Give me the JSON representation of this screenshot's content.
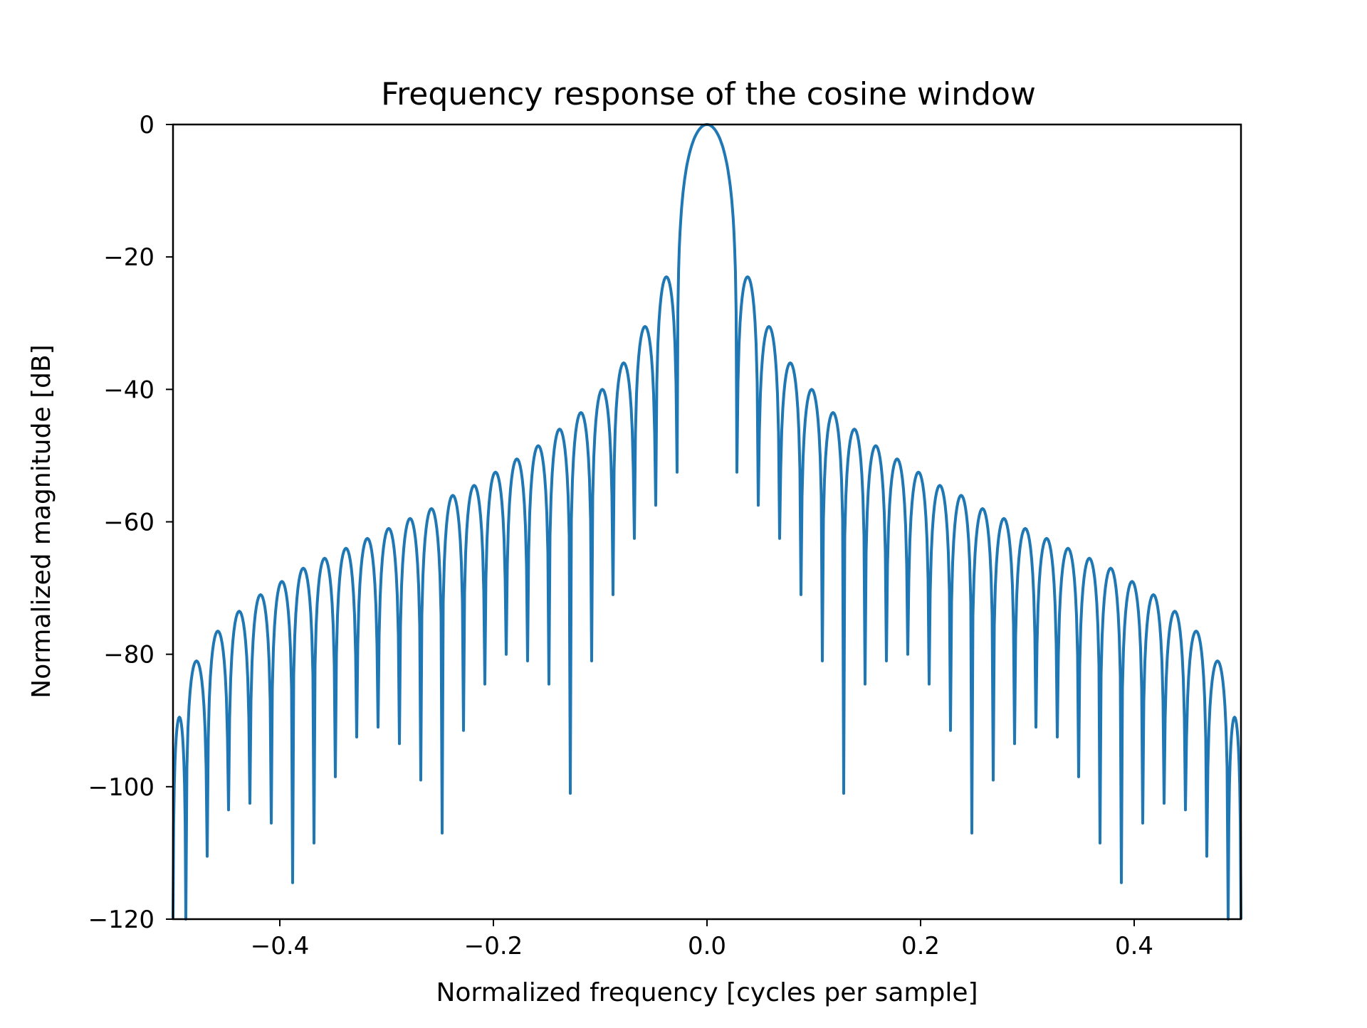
{
  "chart_data": {
    "type": "line",
    "title": "Frequency response of the cosine window",
    "xlabel": "Normalized frequency [cycles per sample]",
    "ylabel": "Normalized magnitude [dB]",
    "xlim": [
      -0.5,
      0.5
    ],
    "ylim": [
      -120,
      0
    ],
    "xticks": [
      -0.4,
      -0.2,
      0.0,
      0.2,
      0.4
    ],
    "xtick_labels": [
      "−0.4",
      "−0.2",
      "0.0",
      "0.2",
      "0.4"
    ],
    "yticks": [
      0,
      -20,
      -40,
      -60,
      -80,
      -100,
      -120
    ],
    "ytick_labels": [
      "0",
      "−20",
      "−40",
      "−60",
      "−80",
      "−100",
      "−120"
    ],
    "grid": false,
    "legend": "none",
    "series": [
      {
        "color": "#1f77b4",
        "description_of_shape": "symmetric response, main lobe peaking at 0 dB at x=0 with nulls near ±0.02; sidelobe peaks and null depths listed below (positive-frequency side, mirrored for negative)",
        "main_lobe": {
          "x": 0.0,
          "peak_db": 0
        },
        "sidelobe_peaks": [
          [
            0.037,
            -23
          ],
          [
            0.057,
            -30.5
          ],
          [
            0.077,
            -36
          ],
          [
            0.097,
            -40
          ],
          [
            0.117,
            -43.5
          ],
          [
            0.137,
            -46
          ],
          [
            0.157,
            -48.5
          ],
          [
            0.177,
            -50.5
          ],
          [
            0.197,
            -52.5
          ],
          [
            0.217,
            -54.5
          ],
          [
            0.237,
            -56
          ],
          [
            0.257,
            -58
          ],
          [
            0.277,
            -59.5
          ],
          [
            0.297,
            -61
          ],
          [
            0.317,
            -62.5
          ],
          [
            0.337,
            -64
          ],
          [
            0.357,
            -65.5
          ],
          [
            0.377,
            -67
          ],
          [
            0.397,
            -69
          ],
          [
            0.417,
            -71
          ],
          [
            0.437,
            -73.5
          ],
          [
            0.457,
            -76.5
          ],
          [
            0.477,
            -81
          ],
          [
            0.497,
            -89.5
          ]
        ],
        "null_depths": [
          [
            0.028,
            -52.5
          ],
          [
            0.048,
            -57.5
          ],
          [
            0.068,
            -62.5
          ],
          [
            0.088,
            -71
          ],
          [
            0.108,
            -81
          ],
          [
            0.128,
            -101
          ],
          [
            0.148,
            -84.5
          ],
          [
            0.168,
            -81
          ],
          [
            0.188,
            -80
          ],
          [
            0.208,
            -84.5
          ],
          [
            0.228,
            -91.5
          ],
          [
            0.248,
            -107
          ],
          [
            0.268,
            -99
          ],
          [
            0.288,
            -93.5
          ],
          [
            0.308,
            -91
          ],
          [
            0.328,
            -92.5
          ],
          [
            0.348,
            -98.5
          ],
          [
            0.368,
            -108.5
          ],
          [
            0.388,
            -114.5
          ],
          [
            0.408,
            -105.5
          ],
          [
            0.428,
            -102.5
          ],
          [
            0.448,
            -103.5
          ],
          [
            0.468,
            -110.5
          ],
          [
            0.488,
            -120
          ],
          [
            0.5,
            -120
          ]
        ]
      }
    ]
  }
}
